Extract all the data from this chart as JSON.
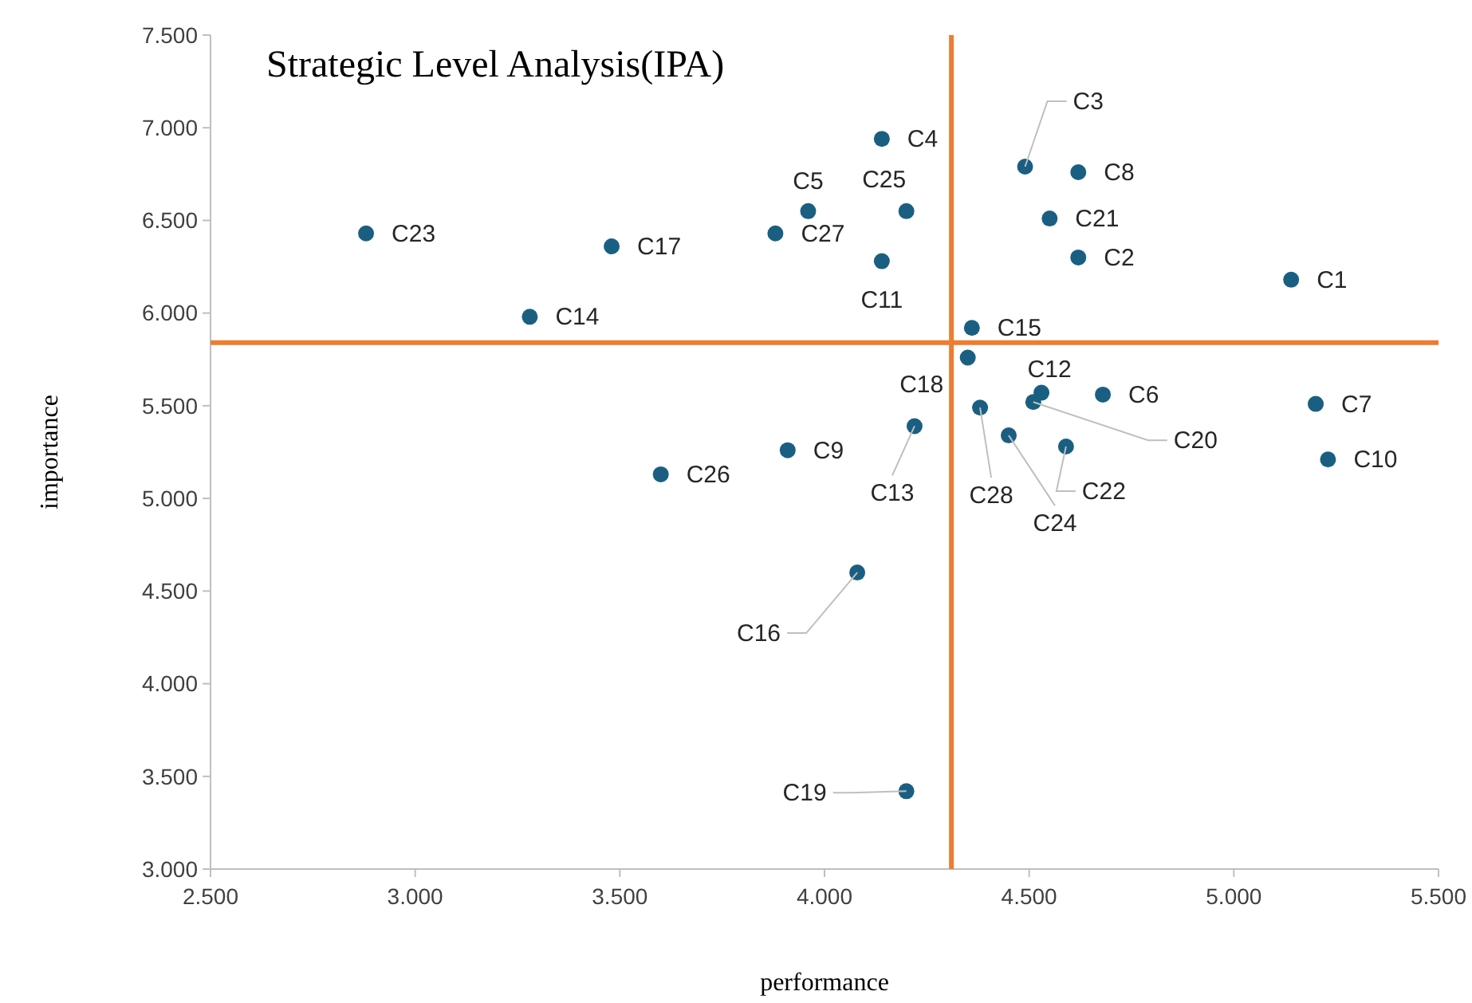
{
  "chart_data": {
    "type": "scatter",
    "title": "Strategic Level Analysis(IPA)",
    "xlabel": "performance",
    "ylabel": "importance",
    "x": [
      5.14,
      4.62,
      4.49,
      4.14,
      3.96,
      4.68,
      5.2,
      4.62,
      3.91,
      5.23,
      4.14,
      4.53,
      4.22,
      3.28,
      4.36,
      4.08,
      3.48,
      4.35,
      4.2,
      4.51,
      4.55,
      4.59,
      2.88,
      4.45,
      4.2,
      3.6,
      3.88,
      4.38
    ],
    "series": [
      {
        "color": "#1a5f82",
        "values": [
          6.18,
          6.3,
          6.79,
          6.94,
          6.55,
          5.56,
          5.51,
          6.76,
          5.26,
          5.21,
          6.28,
          5.57,
          5.39,
          5.98,
          5.92,
          4.6,
          6.36,
          5.76,
          3.42,
          5.52,
          6.51,
          5.28,
          6.43,
          5.34,
          6.55,
          5.13,
          6.43,
          5.49
        ]
      }
    ],
    "annotations": [
      {
        "text": "C1",
        "x": 5.14,
        "y": 6.18
      },
      {
        "text": "C2",
        "x": 4.62,
        "y": 6.3
      },
      {
        "text": "C3",
        "x": 4.49,
        "y": 6.79
      },
      {
        "text": "C4",
        "x": 4.14,
        "y": 6.94
      },
      {
        "text": "C5",
        "x": 3.96,
        "y": 6.55
      },
      {
        "text": "C6",
        "x": 4.68,
        "y": 5.56
      },
      {
        "text": "C7",
        "x": 5.2,
        "y": 5.51
      },
      {
        "text": "C8",
        "x": 4.62,
        "y": 6.76
      },
      {
        "text": "C9",
        "x": 3.91,
        "y": 5.26
      },
      {
        "text": "C10",
        "x": 5.23,
        "y": 5.21
      },
      {
        "text": "C11",
        "x": 4.14,
        "y": 6.28
      },
      {
        "text": "C12",
        "x": 4.53,
        "y": 5.57
      },
      {
        "text": "C13",
        "x": 4.22,
        "y": 5.39
      },
      {
        "text": "C14",
        "x": 3.28,
        "y": 5.98
      },
      {
        "text": "C15",
        "x": 4.36,
        "y": 5.92
      },
      {
        "text": "C16",
        "x": 4.08,
        "y": 4.6
      },
      {
        "text": "C17",
        "x": 3.48,
        "y": 6.36
      },
      {
        "text": "C18",
        "x": 4.35,
        "y": 5.76
      },
      {
        "text": "C19",
        "x": 4.2,
        "y": 3.42
      },
      {
        "text": "C20",
        "x": 4.51,
        "y": 5.52
      },
      {
        "text": "C21",
        "x": 4.55,
        "y": 6.51
      },
      {
        "text": "C22",
        "x": 4.59,
        "y": 5.28
      },
      {
        "text": "C23",
        "x": 2.88,
        "y": 6.43
      },
      {
        "text": "C24",
        "x": 4.45,
        "y": 5.34
      },
      {
        "text": "C25",
        "x": 4.2,
        "y": 6.55
      },
      {
        "text": "C26",
        "x": 3.6,
        "y": 5.13
      },
      {
        "text": "C27",
        "x": 3.88,
        "y": 6.43
      },
      {
        "text": "C28",
        "x": 4.38,
        "y": 5.49
      }
    ],
    "xlim": [
      2.5,
      5.5
    ],
    "ylim": [
      3,
      7.5
    ],
    "xticks": [
      {
        "value": 2.5,
        "label": "2.500"
      },
      {
        "value": 3,
        "label": "3.000"
      },
      {
        "value": 3.5,
        "label": "3.500"
      },
      {
        "value": 4,
        "label": "4.000"
      },
      {
        "value": 4.5,
        "label": "4.500"
      },
      {
        "value": 5,
        "label": "5.000"
      },
      {
        "value": 5.5,
        "label": "5.500"
      }
    ],
    "yticks": [
      {
        "value": 3,
        "label": "3.000"
      },
      {
        "value": 3.5,
        "label": "3.500"
      },
      {
        "value": 4,
        "label": "4.000"
      },
      {
        "value": 4.5,
        "label": "4.500"
      },
      {
        "value": 5,
        "label": "5.000"
      },
      {
        "value": 5.5,
        "label": "5.500"
      },
      {
        "value": 6,
        "label": "6.000"
      },
      {
        "value": 6.5,
        "label": "6.500"
      },
      {
        "value": 7,
        "label": "7.000"
      },
      {
        "value": 7.5,
        "label": "7.500"
      }
    ],
    "ref_lines": [
      {
        "axis": "x",
        "value": 4.31,
        "color": "#ed7d31"
      },
      {
        "axis": "y",
        "value": 5.84,
        "color": "#ed7d31"
      }
    ],
    "marker": "circle"
  }
}
